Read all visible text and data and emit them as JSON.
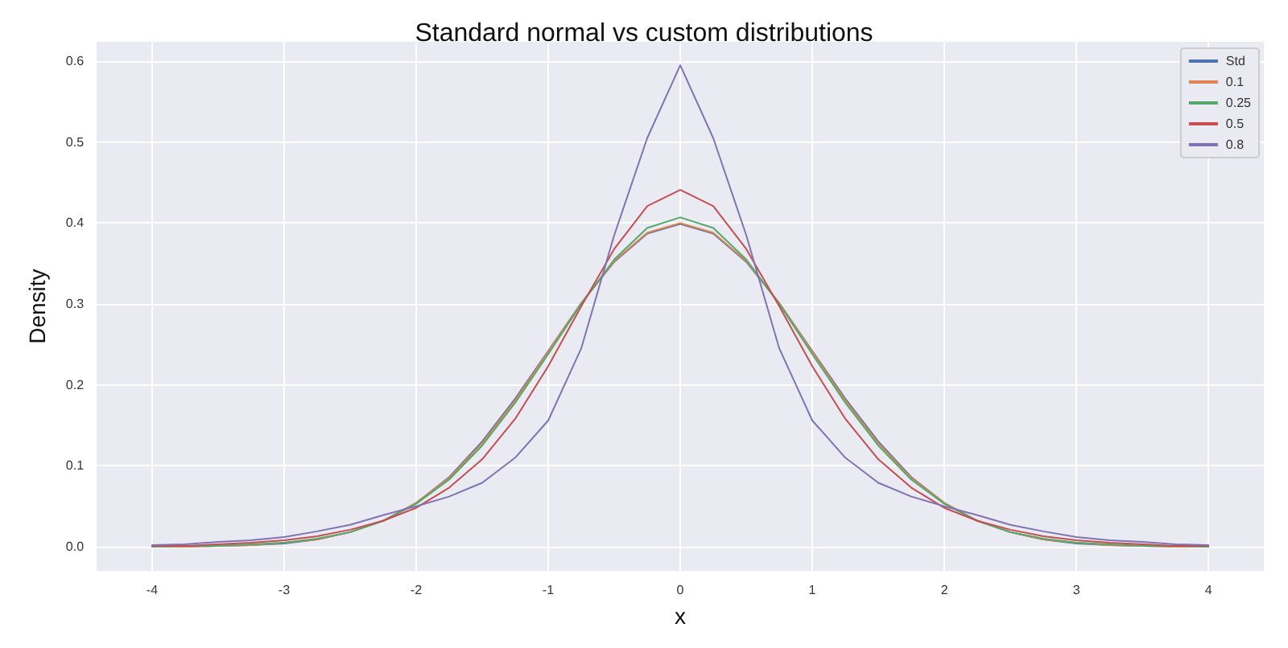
{
  "chart_data": {
    "type": "line",
    "title": "Standard normal vs custom distributions",
    "xlabel": "x",
    "ylabel": "Density",
    "x": [
      -4,
      -3.75,
      -3.5,
      -3.25,
      -3,
      -2.75,
      -2.5,
      -2.25,
      -2,
      -1.75,
      -1.5,
      -1.25,
      -1,
      -0.75,
      -0.5,
      -0.25,
      0,
      0.25,
      0.5,
      0.75,
      1,
      1.25,
      1.5,
      1.75,
      2,
      2.25,
      2.5,
      2.75,
      3,
      3.25,
      3.5,
      3.75,
      4
    ],
    "series": [
      {
        "name": "Std",
        "color": "#4c72b0",
        "values": [
          0,
          0,
          0.001,
          0.002,
          0.004,
          0.009,
          0.018,
          0.032,
          0.054,
          0.086,
          0.13,
          0.183,
          0.242,
          0.301,
          0.352,
          0.387,
          0.399,
          0.387,
          0.352,
          0.301,
          0.242,
          0.183,
          0.13,
          0.086,
          0.054,
          0.032,
          0.018,
          0.009,
          0.004,
          0.002,
          0.001,
          0,
          0
        ]
      },
      {
        "name": "0.1",
        "color": "#dd8452",
        "values": [
          0,
          0,
          0.001,
          0.002,
          0.005,
          0.009,
          0.018,
          0.032,
          0.054,
          0.085,
          0.128,
          0.181,
          0.241,
          0.301,
          0.353,
          0.388,
          0.4,
          0.388,
          0.353,
          0.301,
          0.241,
          0.181,
          0.128,
          0.085,
          0.054,
          0.032,
          0.018,
          0.009,
          0.005,
          0.002,
          0.001,
          0,
          0
        ]
      },
      {
        "name": "0.25",
        "color": "#55a868",
        "values": [
          0,
          0.001,
          0.001,
          0.003,
          0.005,
          0.01,
          0.018,
          0.032,
          0.053,
          0.083,
          0.125,
          0.178,
          0.238,
          0.3,
          0.355,
          0.394,
          0.407,
          0.394,
          0.355,
          0.3,
          0.238,
          0.178,
          0.125,
          0.083,
          0.053,
          0.032,
          0.018,
          0.01,
          0.005,
          0.003,
          0.001,
          0.001,
          0
        ]
      },
      {
        "name": "0.5",
        "color": "#c44e52",
        "values": [
          0.001,
          0.001,
          0.003,
          0.005,
          0.008,
          0.013,
          0.021,
          0.032,
          0.048,
          0.073,
          0.108,
          0.158,
          0.223,
          0.297,
          0.368,
          0.421,
          0.441,
          0.421,
          0.368,
          0.297,
          0.223,
          0.158,
          0.108,
          0.073,
          0.048,
          0.032,
          0.021,
          0.013,
          0.008,
          0.005,
          0.003,
          0.001,
          0.001
        ]
      },
      {
        "name": "0.8",
        "color": "#8172b3",
        "values": [
          0.002,
          0.003,
          0.006,
          0.008,
          0.012,
          0.019,
          0.027,
          0.039,
          0.05,
          0.062,
          0.079,
          0.11,
          0.156,
          0.245,
          0.385,
          0.505,
          0.595,
          0.505,
          0.385,
          0.245,
          0.156,
          0.11,
          0.079,
          0.062,
          0.05,
          0.039,
          0.027,
          0.019,
          0.012,
          0.008,
          0.006,
          0.003,
          0.002
        ]
      }
    ],
    "xlim": [
      -4.42,
      4.42
    ],
    "ylim": [
      -0.03,
      0.624
    ],
    "xticks": [
      -4,
      -3,
      -2,
      -1,
      0,
      1,
      2,
      3,
      4
    ],
    "yticks": [
      {
        "value": 0,
        "label": "0.0"
      },
      {
        "value": 0.1,
        "label": "0.1"
      },
      {
        "value": 0.2,
        "label": "0.2"
      },
      {
        "value": 0.3,
        "label": "0.3"
      },
      {
        "value": 0.4,
        "label": "0.4"
      },
      {
        "value": 0.5,
        "label": "0.5"
      },
      {
        "value": 0.6,
        "label": "0.6"
      }
    ],
    "grid": true,
    "legend": "top right",
    "marker": "none",
    "line_style": "solid"
  }
}
